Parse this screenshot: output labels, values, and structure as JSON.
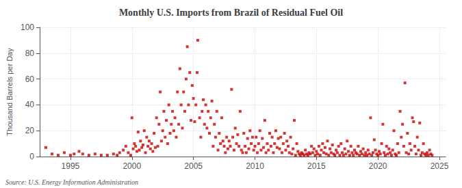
{
  "chart_data": {
    "type": "scatter",
    "title": "Monthly U.S. Imports from Brazil of Residual Fuel Oil",
    "ylabel": "Thousand Barrels per Day",
    "annotations": [
      "Source: U.S. Energy Information Administration"
    ],
    "color": "#cc0000",
    "grid": true,
    "xlim": [
      1992.5,
      2025.5
    ],
    "xticks": [
      1995,
      2000,
      2005,
      2010,
      2015,
      2020,
      2025
    ],
    "ylim": [
      0,
      100
    ],
    "yticks": [
      0,
      20,
      40,
      60,
      80,
      100
    ],
    "x": [
      1993.0,
      1993.5,
      1994.0,
      1994.5,
      1995.0,
      1995.3,
      1995.7,
      1996.0,
      1996.5,
      1997.0,
      1997.5,
      1998.0,
      1998.5,
      1998.8,
      1999.0,
      1999.3,
      1999.5,
      1999.7,
      1999.9,
      2000.0,
      2000.1,
      2000.2,
      2000.3,
      2000.4,
      2000.5,
      2000.6,
      2000.7,
      2000.8,
      2000.9,
      2001.0,
      2001.1,
      2001.2,
      2001.3,
      2001.4,
      2001.5,
      2001.6,
      2001.7,
      2001.8,
      2001.9,
      2002.0,
      2002.1,
      2002.2,
      2002.3,
      2002.4,
      2002.5,
      2002.6,
      2002.7,
      2002.8,
      2002.9,
      2003.0,
      2003.1,
      2003.2,
      2003.3,
      2003.4,
      2003.5,
      2003.6,
      2003.7,
      2003.8,
      2003.9,
      2004.0,
      2004.1,
      2004.2,
      2004.3,
      2004.4,
      2004.5,
      2004.6,
      2004.7,
      2004.8,
      2004.9,
      2005.0,
      2005.1,
      2005.2,
      2005.3,
      2005.35,
      2005.5,
      2005.6,
      2005.7,
      2005.8,
      2005.9,
      2006.0,
      2006.1,
      2006.2,
      2006.3,
      2006.4,
      2006.5,
      2006.6,
      2006.7,
      2006.8,
      2006.9,
      2007.0,
      2007.1,
      2007.2,
      2007.3,
      2007.4,
      2007.5,
      2007.6,
      2007.7,
      2007.8,
      2007.9,
      2008.0,
      2008.1,
      2008.2,
      2008.3,
      2008.4,
      2008.5,
      2008.6,
      2008.7,
      2008.8,
      2008.9,
      2009.0,
      2009.1,
      2009.2,
      2009.3,
      2009.4,
      2009.5,
      2009.6,
      2009.7,
      2009.8,
      2009.9,
      2010.0,
      2010.1,
      2010.2,
      2010.3,
      2010.4,
      2010.5,
      2010.6,
      2010.7,
      2010.8,
      2010.9,
      2011.0,
      2011.1,
      2011.2,
      2011.3,
      2011.4,
      2011.5,
      2011.6,
      2011.7,
      2011.8,
      2011.9,
      2012.0,
      2012.1,
      2012.2,
      2012.3,
      2012.4,
      2012.5,
      2012.6,
      2012.7,
      2012.8,
      2012.9,
      2013.0,
      2013.1,
      2013.2,
      2013.3,
      2013.4,
      2013.5,
      2013.6,
      2013.7,
      2013.8,
      2013.9,
      2014.0,
      2014.1,
      2014.2,
      2014.3,
      2014.4,
      2014.5,
      2014.6,
      2014.7,
      2014.8,
      2014.9,
      2015.0,
      2015.1,
      2015.2,
      2015.3,
      2015.4,
      2015.5,
      2015.6,
      2015.7,
      2015.8,
      2015.9,
      2016.0,
      2016.1,
      2016.2,
      2016.3,
      2016.4,
      2016.5,
      2016.6,
      2016.7,
      2016.8,
      2016.9,
      2017.0,
      2017.1,
      2017.2,
      2017.3,
      2017.4,
      2017.5,
      2017.6,
      2017.7,
      2017.8,
      2017.9,
      2018.0,
      2018.1,
      2018.2,
      2018.3,
      2018.4,
      2018.5,
      2018.6,
      2018.7,
      2018.8,
      2018.9,
      2019.0,
      2019.1,
      2019.2,
      2019.3,
      2019.4,
      2019.5,
      2019.6,
      2019.7,
      2019.8,
      2019.9,
      2020.0,
      2020.1,
      2020.2,
      2020.3,
      2020.4,
      2020.5,
      2020.6,
      2020.7,
      2020.8,
      2020.9,
      2021.0,
      2021.1,
      2021.2,
      2021.3,
      2021.4,
      2021.5,
      2021.6,
      2021.7,
      2021.8,
      2021.9,
      2022.0,
      2022.1,
      2022.2,
      2022.3,
      2022.4,
      2022.5,
      2022.6,
      2022.7,
      2022.8,
      2022.9,
      2023.0,
      2023.1,
      2023.2,
      2023.3,
      2023.4,
      2023.5,
      2023.6,
      2023.7,
      2023.8,
      2023.9,
      2024.0,
      2024.1,
      2024.2,
      2024.3,
      2024.4
    ],
    "values": [
      7,
      2,
      1,
      3,
      1,
      2,
      4,
      2,
      1,
      2,
      1,
      1,
      2,
      1,
      3,
      5,
      8,
      3,
      1,
      30,
      6,
      10,
      8,
      4,
      19,
      5,
      12,
      7,
      9,
      20,
      3,
      15,
      8,
      12,
      6,
      10,
      4,
      18,
      7,
      30,
      8,
      25,
      50,
      12,
      20,
      35,
      15,
      28,
      10,
      40,
      18,
      25,
      35,
      20,
      30,
      15,
      50,
      25,
      68,
      40,
      22,
      50,
      35,
      60,
      85,
      40,
      65,
      28,
      55,
      45,
      27,
      40,
      65,
      90,
      30,
      15,
      35,
      44,
      25,
      40,
      22,
      35,
      18,
      30,
      43,
      8,
      25,
      15,
      35,
      5,
      18,
      10,
      30,
      12,
      8,
      3,
      15,
      6,
      12,
      8,
      52,
      15,
      5,
      22,
      10,
      17,
      8,
      35,
      5,
      3,
      18,
      8,
      3,
      14,
      6,
      20,
      10,
      15,
      5,
      8,
      15,
      3,
      10,
      20,
      5,
      14,
      7,
      28,
      3,
      10,
      5,
      18,
      8,
      15,
      3,
      10,
      20,
      7,
      14,
      6,
      15,
      3,
      10,
      18,
      5,
      12,
      8,
      3,
      15,
      2,
      6,
      28,
      1,
      10,
      4,
      2,
      1,
      3,
      2,
      1,
      5,
      2,
      1,
      3,
      2,
      8,
      3,
      6,
      1,
      4,
      2,
      8,
      1,
      5,
      10,
      3,
      7,
      2,
      12,
      1,
      6,
      3,
      9,
      2,
      1,
      5,
      3,
      8,
      1,
      10,
      3,
      1,
      6,
      2,
      12,
      4,
      1,
      8,
      3,
      1,
      5,
      3,
      2,
      8,
      1,
      4,
      2,
      6,
      1,
      3,
      1,
      5,
      2,
      30,
      1,
      3,
      13,
      5,
      2,
      1,
      4,
      2,
      10,
      25,
      3,
      1,
      8,
      2,
      6,
      3,
      1,
      5,
      20,
      2,
      1,
      10,
      3,
      35,
      15,
      25,
      8,
      57,
      3,
      18,
      2,
      10,
      5,
      30,
      27,
      8,
      2,
      15,
      5,
      26,
      1,
      3,
      10,
      2,
      1,
      3,
      1,
      5,
      2,
      1
    ]
  }
}
